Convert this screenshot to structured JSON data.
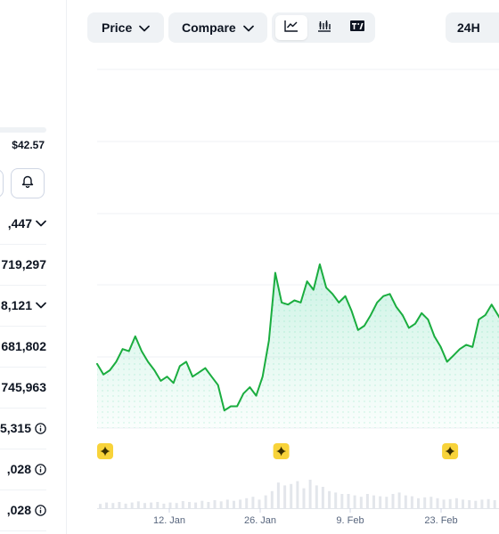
{
  "stats_panel": {
    "price": "$42.57",
    "rows": [
      {
        "value": ",447",
        "icon": "chevron-down-icon"
      },
      {
        "value": "719,297",
        "icon": ""
      },
      {
        "value": "8,121",
        "icon": "chevron-down-icon"
      },
      {
        "value": "681,802",
        "icon": ""
      },
      {
        "value": "745,963",
        "icon": ""
      },
      {
        "value": "5,315",
        "icon": "info-icon"
      },
      {
        "value": ",028",
        "icon": "info-icon"
      },
      {
        "value": ",028",
        "icon": "info-icon"
      }
    ]
  },
  "toolbar": {
    "price_label": "Price",
    "compare_label": "Compare",
    "range_label": "24H",
    "view_modes": [
      "line-chart-icon",
      "candlestick-icon",
      "tradingview-icon"
    ],
    "active_view": "line-chart-icon"
  },
  "colors": {
    "line": "#16c784",
    "line_dark": "#1aad3f",
    "pill_bg": "#eff2f5",
    "grid": "#eff2f5",
    "marker": "#f8d33a"
  },
  "chart_data": {
    "type": "area",
    "x_tick_labels": [
      "12. Jan",
      "26. Jan",
      "9. Feb",
      "23. Feb"
    ],
    "y_relative": [
      0.24,
      0.19,
      0.21,
      0.25,
      0.31,
      0.3,
      0.37,
      0.3,
      0.25,
      0.21,
      0.16,
      0.18,
      0.15,
      0.23,
      0.25,
      0.18,
      0.2,
      0.22,
      0.18,
      0.14,
      0.02,
      0.04,
      0.04,
      0.1,
      0.13,
      0.09,
      0.18,
      0.35,
      0.67,
      0.53,
      0.52,
      0.54,
      0.53,
      0.63,
      0.59,
      0.71,
      0.6,
      0.57,
      0.53,
      0.56,
      0.49,
      0.4,
      0.42,
      0.47,
      0.53,
      0.56,
      0.57,
      0.51,
      0.47,
      0.41,
      0.43,
      0.48,
      0.45,
      0.37,
      0.32,
      0.25,
      0.28,
      0.31,
      0.33,
      0.32,
      0.45,
      0.47,
      0.52,
      0.47,
      0.42
    ],
    "marker_positions": [
      0.0,
      0.49,
      0.96
    ],
    "event_marker_icon": "sparkle-icon"
  }
}
